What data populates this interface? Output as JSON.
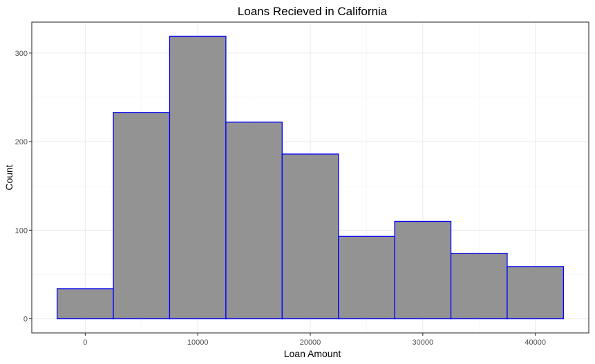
{
  "chart_data": {
    "type": "bar",
    "subtype": "histogram",
    "title": "Loans Recieved in California",
    "xlabel": "Loan Amount",
    "ylabel": "Count",
    "bins": [
      {
        "x0": -2500,
        "x1": 2500,
        "count": 34
      },
      {
        "x0": 2500,
        "x1": 7500,
        "count": 233
      },
      {
        "x0": 7500,
        "x1": 12500,
        "count": 319
      },
      {
        "x0": 12500,
        "x1": 17500,
        "count": 222
      },
      {
        "x0": 17500,
        "x1": 22500,
        "count": 186
      },
      {
        "x0": 22500,
        "x1": 27500,
        "count": 93
      },
      {
        "x0": 27500,
        "x1": 32500,
        "count": 110
      },
      {
        "x0": 32500,
        "x1": 37500,
        "count": 74
      },
      {
        "x0": 37500,
        "x1": 42500,
        "count": 59
      }
    ],
    "xticks": [
      0,
      10000,
      20000,
      30000,
      40000
    ],
    "yticks": [
      0,
      100,
      200,
      300
    ],
    "xlim": [
      -4750,
      44750
    ],
    "ylim": [
      -15.95,
      334.95
    ],
    "grid": true,
    "colors": {
      "bar_fill": "#939393",
      "bar_outline": "#0000ff",
      "panel_border": "#333333",
      "grid": "#ebebeb"
    }
  }
}
